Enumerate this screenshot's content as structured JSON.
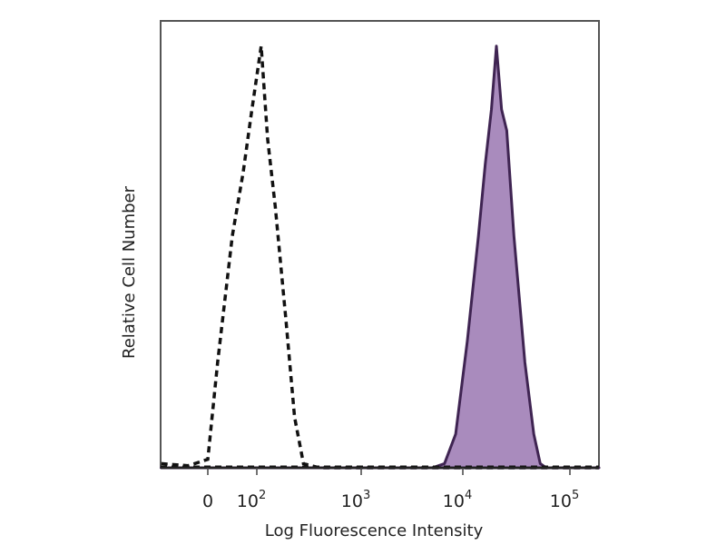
{
  "chart_data": {
    "type": "area",
    "title": "",
    "xlabel": "Log Fluorescence Intensity",
    "ylabel": "Relative Cell Number",
    "x_scale": "logicle",
    "xlim": [
      -95,
      300000
    ],
    "ylim": [
      0,
      106
    ],
    "grid": false,
    "x_ticks": [
      {
        "value": 0,
        "label": "0",
        "exp": ""
      },
      {
        "value": 100,
        "label": "10",
        "exp": "2"
      },
      {
        "value": 1000,
        "label": "10",
        "exp": "3"
      },
      {
        "value": 10000,
        "label": "10",
        "exp": "4"
      },
      {
        "value": 100000,
        "label": "10",
        "exp": "5"
      }
    ],
    "series": [
      {
        "style": "dashed-outline",
        "color": "#111111",
        "x": [
          -95,
          -40,
          0,
          20,
          50,
          72,
          90,
          110,
          127,
          150,
          190,
          230,
          280,
          400,
          300000
        ],
        "y": [
          1,
          0.5,
          2,
          25,
          55,
          70,
          85,
          100,
          78,
          62,
          35,
          12,
          1,
          0,
          0
        ]
      },
      {
        "style": "filled",
        "color": "#3f2452",
        "fill": "#a98bbd",
        "x": [
          -95,
          5000,
          6600,
          8500,
          11000,
          14000,
          16200,
          18500,
          20600,
          23000,
          25700,
          30000,
          38000,
          46000,
          52800,
          60000,
          300000
        ],
        "y": [
          0,
          0,
          1,
          8,
          30,
          55,
          72,
          85,
          100,
          85,
          80,
          55,
          25,
          8,
          1,
          0,
          0
        ]
      }
    ]
  }
}
